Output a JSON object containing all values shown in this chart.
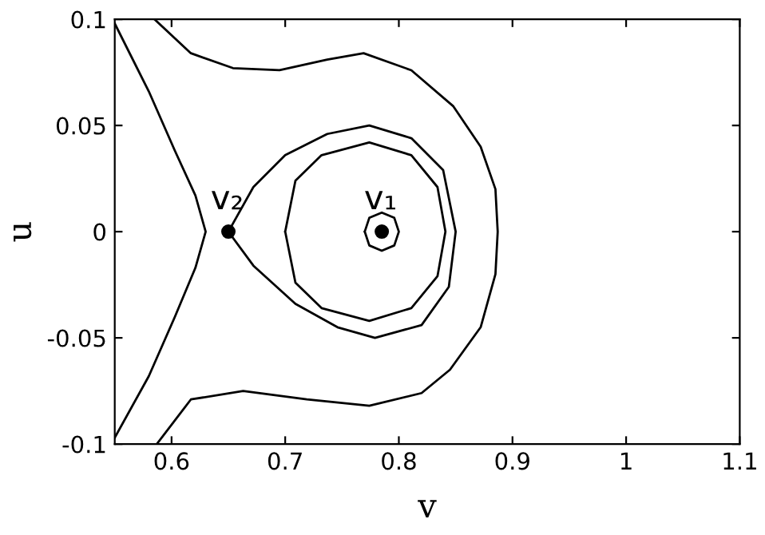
{
  "chart_data": {
    "type": "line",
    "xlabel": "v",
    "ylabel": "u",
    "xlim": [
      0.55,
      1.1
    ],
    "xticks": [
      0.6,
      0.7,
      0.8,
      0.9,
      1,
      1.1
    ],
    "ylim": [
      -0.1,
      0.1
    ],
    "yticks": [
      -0.1,
      -0.05,
      0,
      0.05,
      0.1
    ],
    "grid": false,
    "legend": false,
    "marker": "none",
    "line_style": "solid",
    "series": [
      {
        "color": "#000000",
        "x": [
          0.55,
          0.58,
          0.603,
          0.621,
          0.63,
          0.621,
          0.603,
          0.58,
          0.55
        ],
        "values": [
          0.098,
          0.066,
          0.038,
          0.017,
          0,
          -0.017,
          -0.04,
          -0.068,
          -0.097
        ]
      },
      {
        "color": "#000000",
        "x": [
          0.585,
          0.617,
          0.654,
          0.695,
          0.737,
          0.769,
          0.811,
          0.848,
          0.872,
          0.885,
          0.887,
          0.885,
          0.872,
          0.845,
          0.82,
          0.774,
          0.719,
          0.663,
          0.617,
          0.587
        ],
        "values": [
          0.1,
          0.084,
          0.077,
          0.076,
          0.081,
          0.084,
          0.076,
          0.059,
          0.04,
          0.02,
          0,
          -0.02,
          -0.045,
          -0.065,
          -0.076,
          -0.082,
          -0.079,
          -0.075,
          -0.079,
          -0.1
        ]
      },
      {
        "type": "scatter",
        "marker": "circle",
        "color": "#000000",
        "x": [
          0.785,
          0.65
        ],
        "values": [
          0,
          0
        ]
      }
    ],
    "annotations": [
      {
        "text": "v₁",
        "x": 0.785,
        "y": 0
      },
      {
        "text": "v₂",
        "x": 0.65,
        "y": 0
      }
    ]
  }
}
